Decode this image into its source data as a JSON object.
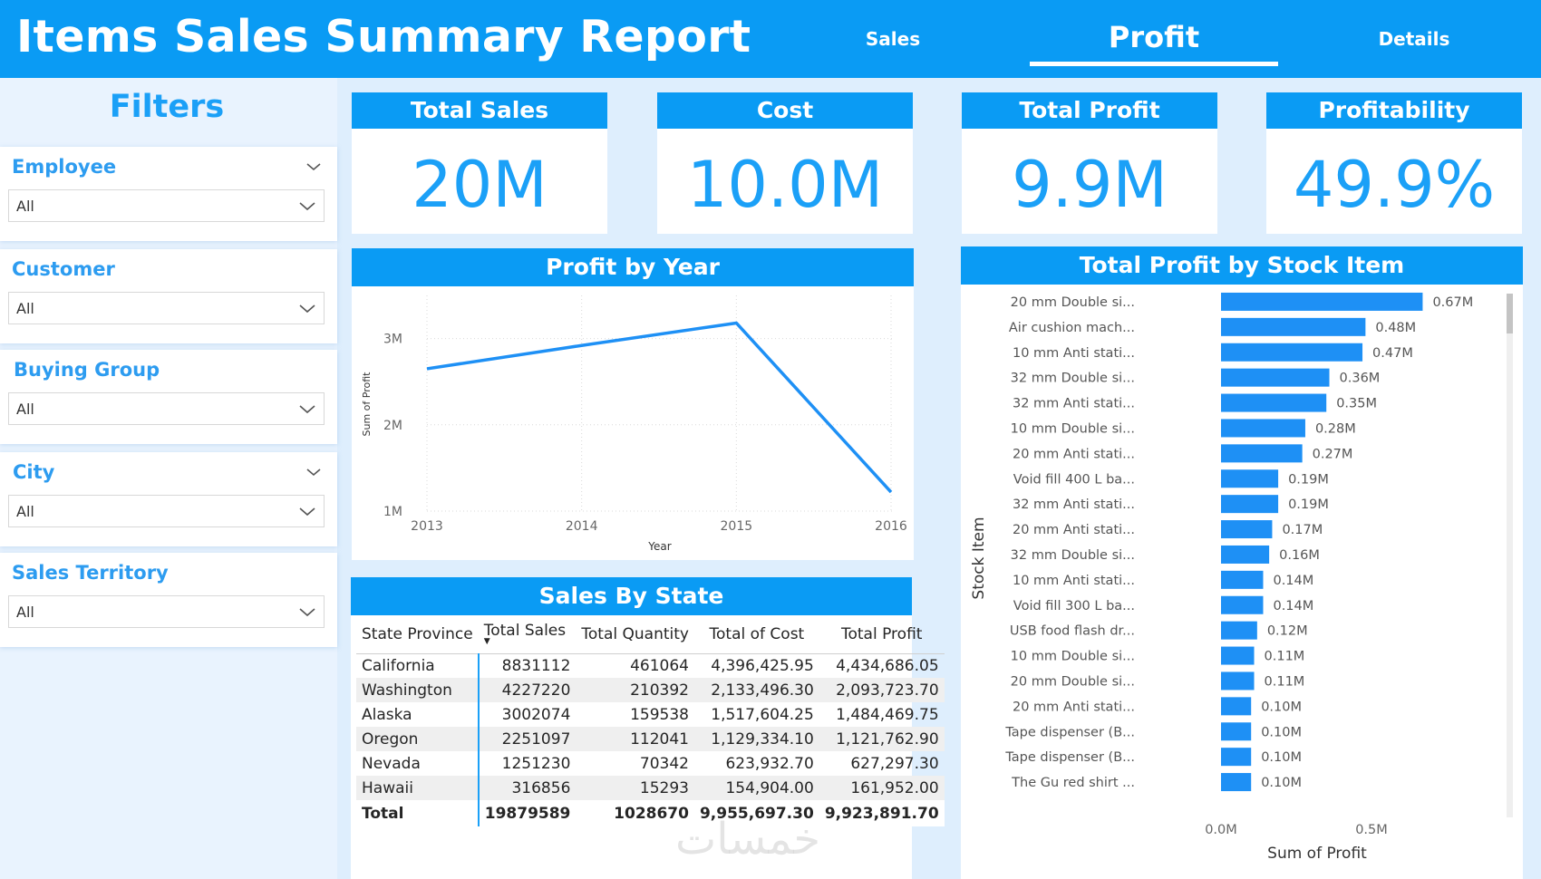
{
  "header": {
    "title": "Items Sales Summary Report",
    "tabs": [
      {
        "label": "Sales"
      },
      {
        "label": "Profit"
      },
      {
        "label": "Details"
      }
    ],
    "active_tab": "Profit"
  },
  "filters": {
    "title": "Filters",
    "slicers": [
      {
        "label": "Employee",
        "value": "All"
      },
      {
        "label": "Customer",
        "value": "All"
      },
      {
        "label": "Buying Group",
        "value": "All"
      },
      {
        "label": "City",
        "value": "All"
      },
      {
        "label": "Sales Territory",
        "value": "All"
      }
    ]
  },
  "kpis": [
    {
      "title": "Total Sales",
      "value": "20M"
    },
    {
      "title": "Cost",
      "value": "10.0M"
    },
    {
      "title": "Total Profit",
      "value": "9.9M"
    },
    {
      "title": "Profitability",
      "value": "49.9%"
    }
  ],
  "profit_by_year": {
    "title": "Profit by Year"
  },
  "stock_item": {
    "title": "Total Profit by Stock Item"
  },
  "sales_by_state": {
    "title": "Sales By State",
    "columns": [
      "State Province",
      "Total Sales",
      "Total Quantity",
      "Total of Cost",
      "Total Profit"
    ],
    "rows": [
      [
        "California",
        "8831112",
        "461064",
        "4,396,425.95",
        "4,434,686.05"
      ],
      [
        "Washington",
        "4227220",
        "210392",
        "2,133,496.30",
        "2,093,723.70"
      ],
      [
        "Alaska",
        "3002074",
        "159538",
        "1,517,604.25",
        "1,484,469.75"
      ],
      [
        "Oregon",
        "2251097",
        "112041",
        "1,129,334.10",
        "1,121,762.90"
      ],
      [
        "Nevada",
        "1251230",
        "70342",
        "623,932.70",
        "627,297.30"
      ],
      [
        "Hawaii",
        "316856",
        "15293",
        "154,904.00",
        "161,952.00"
      ]
    ],
    "total": [
      "Total",
      "19879589",
      "1028670",
      "9,955,697.30",
      "9,923,891.70"
    ]
  },
  "watermark": "خمسات",
  "colors": {
    "accent": "#0a9bf4",
    "value_text": "#1ba0f7",
    "background": "#deeefd",
    "bar": "#1e90f5"
  },
  "chart_data": [
    {
      "type": "line",
      "title": "Profit by Year",
      "xlabel": "Year",
      "ylabel": "Sum of Profit",
      "x": [
        "2013",
        "2014",
        "2015",
        "2016"
      ],
      "series": [
        {
          "values": [
            2.65,
            2.92,
            3.18,
            1.22
          ]
        }
      ],
      "yticks": [
        "1M",
        "2M",
        "3M"
      ],
      "ylim": [
        1,
        3.5
      ],
      "grid": true
    },
    {
      "type": "bar",
      "orientation": "horizontal",
      "title": "Total Profit by Stock Item",
      "xlabel": "Sum of Profit",
      "ylabel": "Stock Item",
      "xticks": [
        "0.0M",
        "0.5M"
      ],
      "xlim": [
        0,
        0.75
      ],
      "categories": [
        "20 mm Double si...",
        "Air cushion mach...",
        "10 mm Anti stati...",
        "32 mm Double si...",
        "32 mm Anti stati...",
        "10 mm Double si...",
        "20 mm Anti stati...",
        "Void fill 400 L ba...",
        "32 mm Anti stati...",
        "20 mm Anti stati...",
        "32 mm Double si...",
        "10 mm Anti stati...",
        "Void fill 300 L ba...",
        "USB food flash dr...",
        "10 mm Double si...",
        "20 mm Double si...",
        "20 mm Anti stati...",
        "Tape dispenser (B...",
        "Tape dispenser (B...",
        "The Gu red shirt ..."
      ],
      "values": [
        0.67,
        0.48,
        0.47,
        0.36,
        0.35,
        0.28,
        0.27,
        0.19,
        0.19,
        0.17,
        0.16,
        0.14,
        0.14,
        0.12,
        0.11,
        0.11,
        0.1,
        0.1,
        0.1,
        0.1
      ],
      "data_labels": [
        "0.67M",
        "0.48M",
        "0.47M",
        "0.36M",
        "0.35M",
        "0.28M",
        "0.27M",
        "0.19M",
        "0.19M",
        "0.17M",
        "0.16M",
        "0.14M",
        "0.14M",
        "0.12M",
        "0.11M",
        "0.11M",
        "0.10M",
        "0.10M",
        "0.10M",
        "0.10M"
      ]
    }
  ]
}
